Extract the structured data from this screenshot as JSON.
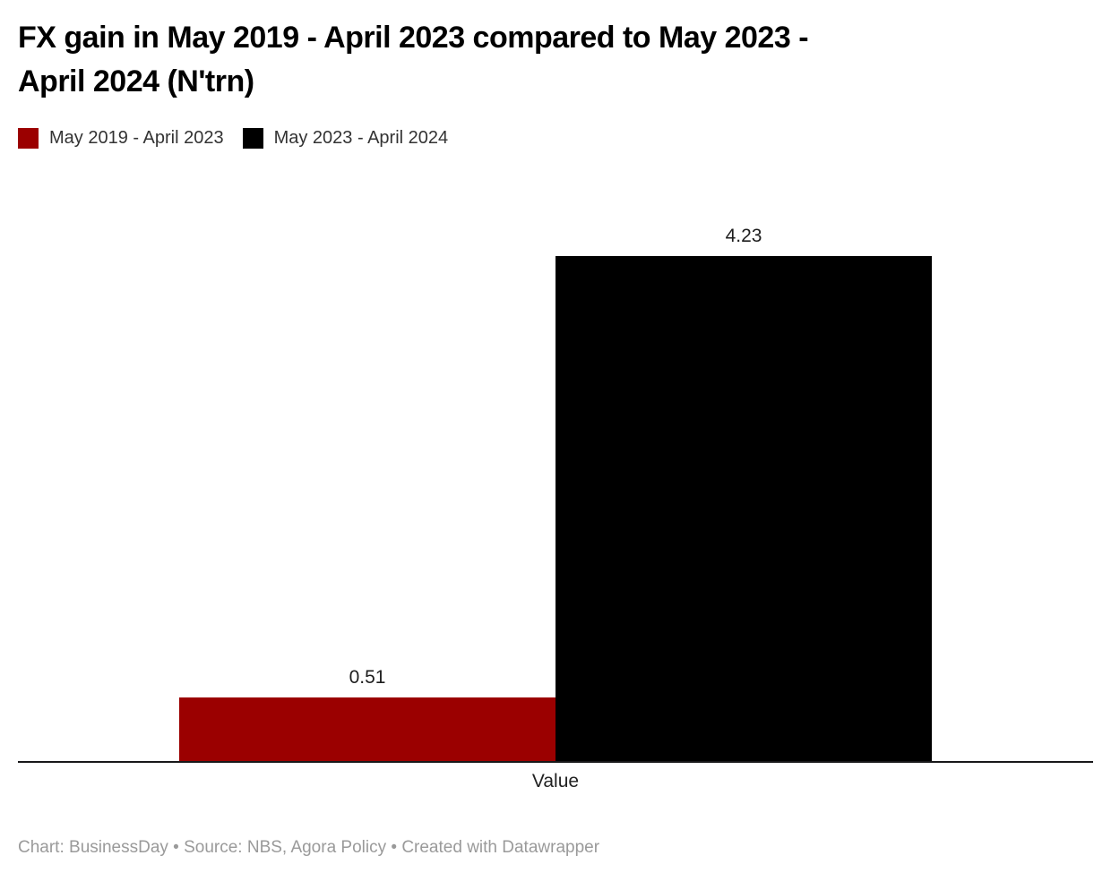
{
  "title": "FX gain in May 2019 - April 2023 compared to May 2023 - April 2024 (N'trn)",
  "title_lines": [
    "FX gain in May 2019 - April 2023 compared to May 2023 -",
    "April 2024 (N'trn)"
  ],
  "legend": [
    {
      "label": "May 2019 - April 2023",
      "color": "#9b0000"
    },
    {
      "label": "May 2023 - April 2024",
      "color": "#000000"
    }
  ],
  "chart_data": {
    "type": "bar",
    "title": "FX gain in May 2019 - April 2023 compared to May 2023 - April 2024 (N'trn)",
    "categories": [
      "Value"
    ],
    "series": [
      {
        "name": "May 2019 - April 2023",
        "values": [
          0.51
        ],
        "label": "0.51",
        "color": "#9b0000"
      },
      {
        "name": "May 2023 - April 2024",
        "values": [
          4.23
        ],
        "label": "4.23",
        "color": "#000000"
      }
    ],
    "xlabel": "Value",
    "ylabel": "",
    "ylim": [
      0,
      4.23
    ],
    "grid": false,
    "legend_position": "top",
    "value_labels_shown": true
  },
  "footer": {
    "text": "Chart: BusinessDay • Source: NBS, Agora Policy • Created with Datawrapper"
  },
  "colors": {
    "axis_line": "#18181a",
    "value_label": "#1d1d1d",
    "footer_text": "#9a9a9a"
  }
}
